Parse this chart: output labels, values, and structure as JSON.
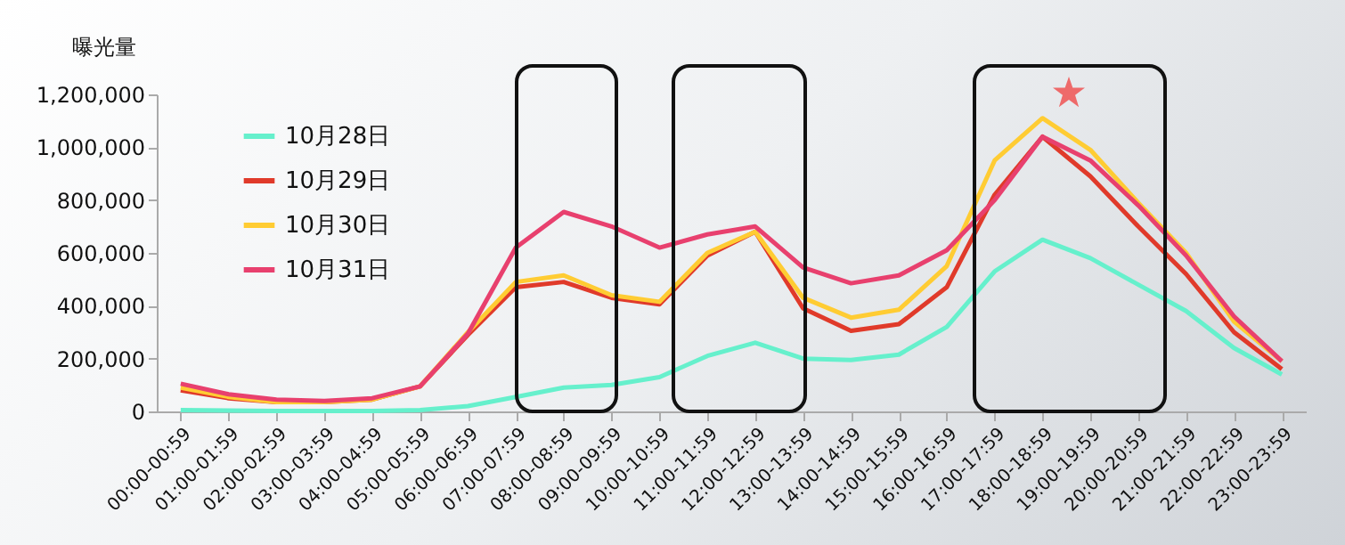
{
  "chart_data": {
    "type": "line",
    "ylabel": "曝光量",
    "categories": [
      "00:00-00:59",
      "01:00-01:59",
      "02:00-02:59",
      "03:00-03:59",
      "04:00-04:59",
      "05:00-05:59",
      "06:00-06:59",
      "07:00-07:59",
      "08:00-08:59",
      "09:00-09:59",
      "10:00-10:59",
      "11:00-11:59",
      "12:00-12:59",
      "13:00-13:59",
      "14:00-14:59",
      "15:00-15:59",
      "16:00-16:59",
      "17:00-17:59",
      "18:00-18:59",
      "19:00-19:59",
      "20:00-20:59",
      "21:00-21:59",
      "22:00-22:59",
      "23:00-23:59"
    ],
    "series": [
      {
        "name": "10月28日",
        "color": "#66f0cc",
        "values": [
          5000,
          3000,
          2000,
          2000,
          2000,
          5000,
          20000,
          55000,
          90000,
          100000,
          130000,
          210000,
          260000,
          200000,
          195000,
          215000,
          320000,
          530000,
          650000,
          580000,
          480000,
          380000,
          240000,
          140000
        ]
      },
      {
        "name": "10月29日",
        "color": "#e03a2a",
        "values": [
          80000,
          50000,
          35000,
          35000,
          45000,
          95000,
          290000,
          470000,
          490000,
          430000,
          405000,
          590000,
          680000,
          390000,
          305000,
          330000,
          470000,
          820000,
          1040000,
          890000,
          700000,
          520000,
          300000,
          160000
        ]
      },
      {
        "name": "10月30日",
        "color": "#ffcc33",
        "values": [
          90000,
          55000,
          35000,
          35000,
          45000,
          95000,
          300000,
          490000,
          515000,
          440000,
          415000,
          600000,
          680000,
          430000,
          355000,
          385000,
          550000,
          950000,
          1110000,
          990000,
          790000,
          600000,
          340000,
          190000
        ]
      },
      {
        "name": "10月31日",
        "color": "#e8406e",
        "values": [
          105000,
          65000,
          45000,
          40000,
          50000,
          95000,
          295000,
          620000,
          755000,
          700000,
          620000,
          670000,
          700000,
          545000,
          485000,
          515000,
          610000,
          800000,
          1040000,
          950000,
          780000,
          590000,
          360000,
          190000
        ]
      }
    ],
    "ylim": [
      0,
      1200000
    ],
    "yticks": [
      {
        "value": 0,
        "label": "0"
      },
      {
        "value": 200000,
        "label": "200,000"
      },
      {
        "value": 400000,
        "label": "400,000"
      },
      {
        "value": 600000,
        "label": "600,000"
      },
      {
        "value": 800000,
        "label": "800,000"
      },
      {
        "value": 1000000,
        "label": "1,000,000"
      },
      {
        "value": 1200000,
        "label": "1,200,000"
      }
    ],
    "grid": false,
    "legend": "top left",
    "marker": "none",
    "line_style": "solid"
  }
}
